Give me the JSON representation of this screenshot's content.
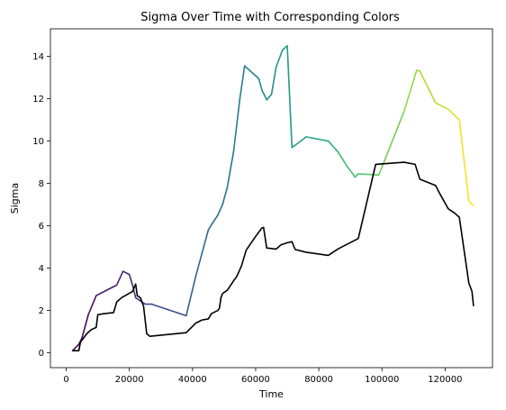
{
  "chart_data": {
    "type": "line",
    "title": "Sigma Over Time with Corresponding Colors",
    "xlabel": "Time",
    "ylabel": "Sigma",
    "xlim": [
      -5000,
      135000
    ],
    "ylim": [
      -0.7,
      15.3
    ],
    "xticks": [
      0,
      20000,
      40000,
      60000,
      80000,
      100000,
      120000
    ],
    "xtick_labels": [
      "0",
      "20000",
      "40000",
      "60000",
      "80000",
      "100000",
      "120000"
    ],
    "yticks": [
      0,
      2,
      4,
      6,
      8,
      10,
      12,
      14
    ],
    "ytick_labels": [
      "0",
      "2",
      "4",
      "6",
      "8",
      "10",
      "12",
      "14"
    ],
    "grid": false,
    "series": [
      {
        "color_scale": "viridis",
        "points": [
          [
            2000,
            0.1
          ],
          [
            4000,
            0.4
          ],
          [
            5000,
            0.7
          ],
          [
            7000,
            1.8
          ],
          [
            9500,
            2.7
          ],
          [
            16000,
            3.2
          ],
          [
            18000,
            3.85
          ],
          [
            20000,
            3.7
          ],
          [
            21000,
            3.2
          ],
          [
            22000,
            2.6
          ],
          [
            25000,
            2.3
          ],
          [
            27000,
            2.3
          ],
          [
            38000,
            1.75
          ],
          [
            41000,
            3.6
          ],
          [
            43000,
            4.7
          ],
          [
            45000,
            5.8
          ],
          [
            46000,
            6.05
          ],
          [
            48000,
            6.5
          ],
          [
            49500,
            7.0
          ],
          [
            51000,
            7.8
          ],
          [
            53000,
            9.5
          ],
          [
            55000,
            12.0
          ],
          [
            56500,
            13.55
          ],
          [
            61000,
            12.95
          ],
          [
            62000,
            12.4
          ],
          [
            63500,
            11.95
          ],
          [
            65000,
            12.2
          ],
          [
            66500,
            13.5
          ],
          [
            68500,
            14.3
          ],
          [
            70000,
            14.5
          ],
          [
            71500,
            9.7
          ],
          [
            72500,
            9.8
          ],
          [
            76000,
            10.2
          ],
          [
            83000,
            10.0
          ],
          [
            86000,
            9.5
          ],
          [
            89000,
            8.8
          ],
          [
            91500,
            8.3
          ],
          [
            92500,
            8.45
          ],
          [
            99000,
            8.4
          ],
          [
            107000,
            11.4
          ],
          [
            111000,
            13.35
          ],
          [
            112000,
            13.3
          ],
          [
            117000,
            11.8
          ],
          [
            121000,
            11.5
          ],
          [
            124500,
            11.0
          ],
          [
            127500,
            7.2
          ],
          [
            128500,
            7.0
          ],
          [
            129000,
            6.98
          ]
        ]
      },
      {
        "color": "#000000",
        "points": [
          [
            2000,
            0.1
          ],
          [
            4000,
            0.1
          ],
          [
            4500,
            0.5
          ],
          [
            6500,
            0.9
          ],
          [
            8000,
            1.1
          ],
          [
            9500,
            1.2
          ],
          [
            10000,
            1.8
          ],
          [
            12000,
            1.85
          ],
          [
            15000,
            1.9
          ],
          [
            16000,
            2.4
          ],
          [
            17500,
            2.6
          ],
          [
            21000,
            2.9
          ],
          [
            22000,
            3.25
          ],
          [
            22500,
            2.7
          ],
          [
            23500,
            2.6
          ],
          [
            24500,
            2.2
          ],
          [
            25500,
            0.9
          ],
          [
            26500,
            0.78
          ],
          [
            38000,
            0.95
          ],
          [
            41000,
            1.4
          ],
          [
            43000,
            1.55
          ],
          [
            45000,
            1.6
          ],
          [
            46000,
            1.85
          ],
          [
            48000,
            2.0
          ],
          [
            48500,
            2.1
          ],
          [
            49000,
            2.6
          ],
          [
            49500,
            2.8
          ],
          [
            51000,
            2.95
          ],
          [
            53000,
            3.4
          ],
          [
            54000,
            3.6
          ],
          [
            55500,
            4.1
          ],
          [
            57000,
            4.85
          ],
          [
            60000,
            5.5
          ],
          [
            62000,
            5.9
          ],
          [
            62500,
            5.92
          ],
          [
            63500,
            4.95
          ],
          [
            66500,
            4.9
          ],
          [
            68000,
            5.1
          ],
          [
            70000,
            5.2
          ],
          [
            71500,
            5.25
          ],
          [
            72500,
            4.88
          ],
          [
            76000,
            4.75
          ],
          [
            83000,
            4.6
          ],
          [
            86000,
            4.9
          ],
          [
            92500,
            5.4
          ],
          [
            98000,
            8.9
          ],
          [
            107000,
            9.0
          ],
          [
            110500,
            8.9
          ],
          [
            112000,
            8.2
          ],
          [
            117000,
            7.9
          ],
          [
            118000,
            7.6
          ],
          [
            121000,
            6.8
          ],
          [
            123000,
            6.6
          ],
          [
            124500,
            6.4
          ],
          [
            127500,
            3.3
          ],
          [
            128500,
            2.9
          ],
          [
            129000,
            2.2
          ]
        ]
      }
    ]
  }
}
